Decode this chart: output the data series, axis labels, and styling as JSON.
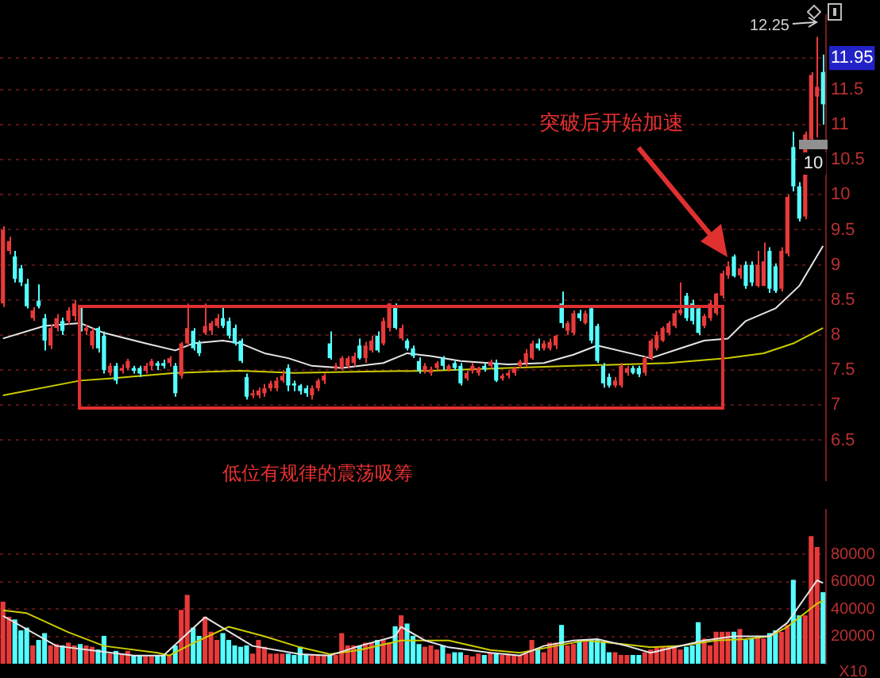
{
  "chart_data": [
    {
      "type": "candlestick",
      "tick_labels": "y",
      "grid": "y",
      "legend": false,
      "marker": "none",
      "line_style": "solid",
      "categories": [
        null,
        null,
        null,
        null,
        null,
        null,
        null,
        null,
        null,
        null,
        null,
        null,
        null,
        null,
        null,
        null,
        null,
        null,
        null,
        null,
        null,
        null,
        null,
        null,
        null,
        null,
        null,
        null,
        null,
        null,
        null,
        null,
        null,
        null,
        null,
        null,
        null,
        null,
        null,
        null,
        null,
        null,
        null,
        null,
        null,
        null,
        null,
        null,
        null,
        null,
        null,
        null,
        null,
        null,
        null,
        null,
        null,
        null,
        null,
        null,
        null,
        null,
        null,
        null,
        null,
        null,
        null,
        null,
        null,
        null,
        null,
        null,
        null,
        null,
        null,
        null,
        null,
        null,
        null,
        null,
        null,
        null,
        null,
        null,
        null,
        null,
        null,
        null,
        null,
        null,
        null,
        null,
        null,
        null,
        null,
        null,
        null,
        null,
        null,
        null,
        null,
        null,
        null,
        null,
        null,
        null,
        null,
        null,
        null,
        null,
        null,
        null,
        null,
        null,
        null,
        null,
        null,
        null,
        null,
        null,
        null,
        null,
        null,
        null,
        null,
        null,
        null,
        null,
        null,
        null,
        null,
        null,
        null,
        null,
        null,
        null,
        null,
        null,
        null
      ],
      "ohlc": [
        [
          8.45,
          9.55,
          8.4,
          9.5
        ],
        [
          9.2,
          9.4,
          9.15,
          9.34
        ],
        [
          9.12,
          9.2,
          8.75,
          8.8
        ],
        [
          8.95,
          9.0,
          8.7,
          8.75
        ],
        [
          8.73,
          8.8,
          8.38,
          8.41
        ],
        [
          8.24,
          8.4,
          8.2,
          8.35
        ],
        [
          8.49,
          8.72,
          8.38,
          8.41
        ],
        [
          8.24,
          8.3,
          7.78,
          7.92
        ],
        [
          7.85,
          8.15,
          7.8,
          8.1
        ],
        [
          8.1,
          8.3,
          8.05,
          8.24
        ],
        [
          8.2,
          8.25,
          8.0,
          8.06
        ],
        [
          8.2,
          8.4,
          8.15,
          8.35
        ],
        [
          8.27,
          8.5,
          8.2,
          8.45
        ],
        [
          8.35,
          8.4,
          8.05,
          8.1
        ],
        [
          8.06,
          8.15,
          8.0,
          8.1
        ],
        [
          7.85,
          8.1,
          7.8,
          8.06
        ],
        [
          8.1,
          8.12,
          7.75,
          7.81
        ],
        [
          7.99,
          8.05,
          7.45,
          7.5
        ],
        [
          7.46,
          7.6,
          7.42,
          7.56
        ],
        [
          7.56,
          7.6,
          7.3,
          7.35
        ],
        [
          7.49,
          7.58,
          7.45,
          7.53
        ],
        [
          7.53,
          7.66,
          7.5,
          7.63
        ],
        [
          7.53,
          7.56,
          7.45,
          7.49
        ],
        [
          7.53,
          7.56,
          7.4,
          7.45
        ],
        [
          7.49,
          7.6,
          7.45,
          7.56
        ],
        [
          7.56,
          7.66,
          7.5,
          7.63
        ],
        [
          7.6,
          7.63,
          7.5,
          7.56
        ],
        [
          7.6,
          7.65,
          7.52,
          7.56
        ],
        [
          7.6,
          7.7,
          7.55,
          7.67
        ],
        [
          7.56,
          7.6,
          7.12,
          7.17
        ],
        [
          7.42,
          7.9,
          7.38,
          7.88
        ],
        [
          7.88,
          8.45,
          7.85,
          8.1
        ],
        [
          8.06,
          8.1,
          7.78,
          7.81
        ],
        [
          7.88,
          7.92,
          7.7,
          7.74
        ],
        [
          8.03,
          8.45,
          8.0,
          8.13
        ],
        [
          8.06,
          8.2,
          8.0,
          8.17
        ],
        [
          8.13,
          8.3,
          8.1,
          8.24
        ],
        [
          8.24,
          8.4,
          8.1,
          8.13
        ],
        [
          8.2,
          8.25,
          7.95,
          7.99
        ],
        [
          8.1,
          8.15,
          7.85,
          7.88
        ],
        [
          7.92,
          7.95,
          7.6,
          7.63
        ],
        [
          7.4,
          7.45,
          7.08,
          7.12
        ],
        [
          7.14,
          7.22,
          7.1,
          7.17
        ],
        [
          7.14,
          7.25,
          7.1,
          7.21
        ],
        [
          7.17,
          7.3,
          7.12,
          7.24
        ],
        [
          7.24,
          7.35,
          7.2,
          7.31
        ],
        [
          7.24,
          7.4,
          7.2,
          7.35
        ],
        [
          7.35,
          7.5,
          7.32,
          7.42
        ],
        [
          7.53,
          7.58,
          7.2,
          7.28
        ],
        [
          7.31,
          7.35,
          7.2,
          7.28
        ],
        [
          7.28,
          7.3,
          7.15,
          7.2
        ],
        [
          7.24,
          7.28,
          7.12,
          7.17
        ],
        [
          7.14,
          7.28,
          7.08,
          7.24
        ],
        [
          7.24,
          7.38,
          7.2,
          7.35
        ],
        [
          7.35,
          7.45,
          7.3,
          7.42
        ],
        [
          7.88,
          8.05,
          7.65,
          7.67
        ],
        [
          7.53,
          7.6,
          7.5,
          7.56
        ],
        [
          7.53,
          7.7,
          7.5,
          7.67
        ],
        [
          7.56,
          7.7,
          7.52,
          7.67
        ],
        [
          7.6,
          7.75,
          7.55,
          7.7
        ],
        [
          7.85,
          7.95,
          7.65,
          7.67
        ],
        [
          7.67,
          7.9,
          7.6,
          7.85
        ],
        [
          7.78,
          7.99,
          7.75,
          7.92
        ],
        [
          7.99,
          8.05,
          7.75,
          7.78
        ],
        [
          7.88,
          8.25,
          7.85,
          8.2
        ],
        [
          8.1,
          8.45,
          8.05,
          8.45
        ],
        [
          8.41,
          8.45,
          8.08,
          8.1
        ],
        [
          7.95,
          8.15,
          7.92,
          8.1
        ],
        [
          7.92,
          7.95,
          7.78,
          7.81
        ],
        [
          7.81,
          7.85,
          7.67,
          7.7
        ],
        [
          7.63,
          7.68,
          7.45,
          7.49
        ],
        [
          7.49,
          7.6,
          7.45,
          7.56
        ],
        [
          7.46,
          7.55,
          7.42,
          7.51
        ],
        [
          7.53,
          7.63,
          7.5,
          7.6
        ],
        [
          7.67,
          7.7,
          7.5,
          7.56
        ],
        [
          7.51,
          7.58,
          7.48,
          7.56
        ],
        [
          7.6,
          7.63,
          7.5,
          7.53
        ],
        [
          7.56,
          7.6,
          7.28,
          7.31
        ],
        [
          7.38,
          7.5,
          7.35,
          7.46
        ],
        [
          7.49,
          7.6,
          7.45,
          7.56
        ],
        [
          7.46,
          7.55,
          7.42,
          7.53
        ],
        [
          7.56,
          7.6,
          7.48,
          7.51
        ],
        [
          7.56,
          7.65,
          7.52,
          7.62
        ],
        [
          7.6,
          7.65,
          7.33,
          7.35
        ],
        [
          7.38,
          7.45,
          7.35,
          7.42
        ],
        [
          7.42,
          7.5,
          7.38,
          7.46
        ],
        [
          7.46,
          7.55,
          7.42,
          7.53
        ],
        [
          7.56,
          7.65,
          7.52,
          7.62
        ],
        [
          7.6,
          7.8,
          7.55,
          7.74
        ],
        [
          7.67,
          7.92,
          7.65,
          7.88
        ],
        [
          7.88,
          7.95,
          7.78,
          7.81
        ],
        [
          7.81,
          7.92,
          7.78,
          7.88
        ],
        [
          7.81,
          7.95,
          7.78,
          7.9
        ],
        [
          7.85,
          8.0,
          7.8,
          7.99
        ],
        [
          8.45,
          8.62,
          8.1,
          8.17
        ],
        [
          8.06,
          8.2,
          8.0,
          8.17
        ],
        [
          8.03,
          8.35,
          8.0,
          8.31
        ],
        [
          8.31,
          8.36,
          8.2,
          8.24
        ],
        [
          8.17,
          8.35,
          8.15,
          8.31
        ],
        [
          8.38,
          8.42,
          7.88,
          7.92
        ],
        [
          8.13,
          8.16,
          7.6,
          7.63
        ],
        [
          7.56,
          7.6,
          7.25,
          7.31
        ],
        [
          7.4,
          7.45,
          7.25,
          7.28
        ],
        [
          7.28,
          7.4,
          7.25,
          7.35
        ],
        [
          7.28,
          7.6,
          7.25,
          7.56
        ],
        [
          7.46,
          7.56,
          7.42,
          7.53
        ],
        [
          7.53,
          7.56,
          7.44,
          7.46
        ],
        [
          7.53,
          7.56,
          7.4,
          7.44
        ],
        [
          7.46,
          7.7,
          7.42,
          7.67
        ],
        [
          7.67,
          7.95,
          7.64,
          7.92
        ],
        [
          7.81,
          8.05,
          7.78,
          8.0
        ],
        [
          7.92,
          8.12,
          7.9,
          8.1
        ],
        [
          8.03,
          8.2,
          8.0,
          8.17
        ],
        [
          8.13,
          8.35,
          8.1,
          8.31
        ],
        [
          8.31,
          8.75,
          8.28,
          8.36
        ],
        [
          8.56,
          8.6,
          8.2,
          8.24
        ],
        [
          8.45,
          8.5,
          8.15,
          8.2
        ],
        [
          8.38,
          8.42,
          8.0,
          8.03
        ],
        [
          8.13,
          8.3,
          8.1,
          8.27
        ],
        [
          8.24,
          8.5,
          8.2,
          8.45
        ],
        [
          8.31,
          8.6,
          8.28,
          8.59
        ],
        [
          8.56,
          8.92,
          8.52,
          8.88
        ],
        [
          8.85,
          9.05,
          8.8,
          8.98
        ],
        [
          9.12,
          9.15,
          8.82,
          8.84
        ],
        [
          8.85,
          9.0,
          8.8,
          8.95
        ],
        [
          9.0,
          9.05,
          8.66,
          8.7
        ],
        [
          9.0,
          9.05,
          8.7,
          8.75
        ],
        [
          8.7,
          9.2,
          8.68,
          9.0
        ],
        [
          8.7,
          9.32,
          8.7,
          9.05
        ],
        [
          9.2,
          9.25,
          8.6,
          8.66
        ],
        [
          8.98,
          9.02,
          8.6,
          8.63
        ],
        [
          8.66,
          9.25,
          8.62,
          9.2
        ],
        [
          9.16,
          10.0,
          9.12,
          9.97
        ],
        [
          10.68,
          10.9,
          10.05,
          10.12
        ],
        [
          10.12,
          10.18,
          9.62,
          9.66
        ],
        [
          9.69,
          10.9,
          9.65,
          10.86
        ],
        [
          10.79,
          11.75,
          10.75,
          11.71
        ],
        [
          11.4,
          12.25,
          10.82,
          11.54
        ],
        [
          11.75,
          12.0,
          11.0,
          11.29
        ]
      ],
      "colors": [
        "#e83a3a",
        "#e83a3a",
        "#54ffff",
        "#54ffff",
        "#54ffff",
        "#e83a3a",
        "#54ffff",
        "#54ffff",
        "#e83a3a",
        "#e83a3a",
        "#54ffff",
        "#e83a3a",
        "#e83a3a",
        "#54ffff",
        "#e83a3a",
        "#e83a3a",
        "#54ffff",
        "#54ffff",
        "#e83a3a",
        "#54ffff",
        "#e83a3a",
        "#e83a3a",
        "#54ffff",
        "#54ffff",
        "#e83a3a",
        "#e83a3a",
        "#54ffff",
        "#54ffff",
        "#e83a3a",
        "#54ffff",
        "#e83a3a",
        "#e83a3a",
        "#54ffff",
        "#54ffff",
        "#e83a3a",
        "#e83a3a",
        "#e83a3a",
        "#54ffff",
        "#54ffff",
        "#54ffff",
        "#54ffff",
        "#54ffff",
        "#e83a3a",
        "#e83a3a",
        "#e83a3a",
        "#e83a3a",
        "#e83a3a",
        "#e83a3a",
        "#54ffff",
        "#54ffff",
        "#54ffff",
        "#54ffff",
        "#e83a3a",
        "#e83a3a",
        "#e83a3a",
        "#54ffff",
        "#e83a3a",
        "#e83a3a",
        "#e83a3a",
        "#e83a3a",
        "#54ffff",
        "#e83a3a",
        "#e83a3a",
        "#54ffff",
        "#e83a3a",
        "#e83a3a",
        "#54ffff",
        "#e83a3a",
        "#54ffff",
        "#54ffff",
        "#54ffff",
        "#e83a3a",
        "#e83a3a",
        "#e83a3a",
        "#54ffff",
        "#e83a3a",
        "#54ffff",
        "#54ffff",
        "#e83a3a",
        "#e83a3a",
        "#e83a3a",
        "#54ffff",
        "#e83a3a",
        "#54ffff",
        "#e83a3a",
        "#e83a3a",
        "#e83a3a",
        "#e83a3a",
        "#e83a3a",
        "#e83a3a",
        "#54ffff",
        "#e83a3a",
        "#e83a3a",
        "#e83a3a",
        "#54ffff",
        "#e83a3a",
        "#e83a3a",
        "#54ffff",
        "#e83a3a",
        "#54ffff",
        "#54ffff",
        "#54ffff",
        "#54ffff",
        "#e83a3a",
        "#e83a3a",
        "#e83a3a",
        "#54ffff",
        "#54ffff",
        "#e83a3a",
        "#e83a3a",
        "#e83a3a",
        "#e83a3a",
        "#e83a3a",
        "#e83a3a",
        "#e83a3a",
        "#54ffff",
        "#54ffff",
        "#54ffff",
        "#e83a3a",
        "#e83a3a",
        "#e83a3a",
        "#e83a3a",
        "#e83a3a",
        "#54ffff",
        "#e83a3a",
        "#54ffff",
        "#54ffff",
        "#e83a3a",
        "#e83a3a",
        "#54ffff",
        "#54ffff",
        "#e83a3a",
        "#e83a3a",
        "#54ffff",
        "#54ffff",
        "#e83a3a",
        "#e83a3a",
        "#e83a3a",
        "#54ffff"
      ],
      "series": [
        {
          "type": "line",
          "color": "#e6e6e6",
          "values": [
            7.95,
            null,
            null,
            null,
            null,
            null,
            null,
            8.13,
            null,
            null,
            null,
            null,
            null,
            8.17,
            null,
            null,
            null,
            8.03,
            null,
            null,
            null,
            null,
            null,
            null,
            7.88,
            null,
            null,
            null,
            null,
            7.78,
            null,
            null,
            7.88,
            null,
            null,
            null,
            null,
            7.92,
            null,
            null,
            7.88,
            null,
            null,
            null,
            7.74,
            null,
            null,
            null,
            7.67,
            null,
            null,
            null,
            7.56,
            null,
            null,
            null,
            null,
            7.53,
            null,
            null,
            null,
            null,
            null,
            null,
            7.6,
            null,
            null,
            null,
            7.74,
            null,
            null,
            null,
            7.7,
            null,
            null,
            null,
            null,
            7.63,
            null,
            null,
            null,
            null,
            null,
            null,
            null,
            7.58,
            null,
            null,
            null,
            null,
            null,
            7.6,
            null,
            null,
            null,
            null,
            7.72,
            null,
            null,
            null,
            7.85,
            null,
            null,
            null,
            null,
            null,
            null,
            null,
            null,
            7.67,
            null,
            null,
            null,
            null,
            7.81,
            null,
            null,
            null,
            7.92,
            null,
            null,
            null,
            7.95,
            null,
            null,
            8.2,
            null,
            null,
            null,
            null,
            8.38,
            null,
            null,
            null,
            8.7,
            null,
            null,
            null,
            9.27
          ]
        },
        {
          "type": "line",
          "color": "#cccc00",
          "values": [
            7.14,
            null,
            null,
            null,
            null,
            null,
            null,
            null,
            null,
            null,
            null,
            null,
            null,
            7.35,
            null,
            null,
            null,
            null,
            7.38,
            null,
            null,
            null,
            null,
            null,
            null,
            null,
            null,
            null,
            null,
            7.46,
            null,
            null,
            null,
            null,
            null,
            null,
            null,
            null,
            null,
            null,
            7.49,
            null,
            null,
            null,
            null,
            null,
            null,
            null,
            null,
            7.46,
            null,
            null,
            null,
            null,
            null,
            null,
            null,
            null,
            null,
            null,
            null,
            7.48,
            null,
            null,
            null,
            null,
            null,
            null,
            null,
            null,
            null,
            null,
            7.49,
            null,
            null,
            null,
            null,
            null,
            null,
            null,
            null,
            null,
            null,
            null,
            null,
            7.53,
            null,
            null,
            null,
            null,
            null,
            null,
            null,
            null,
            null,
            null,
            7.56,
            null,
            null,
            null,
            null,
            null,
            null,
            null,
            null,
            null,
            null,
            null,
            null,
            null,
            null,
            null,
            7.6,
            null,
            null,
            null,
            null,
            null,
            null,
            null,
            null,
            null,
            7.67,
            null,
            null,
            null,
            null,
            null,
            7.74,
            null,
            null,
            null,
            null,
            7.88,
            null,
            null,
            null,
            null,
            8.1
          ]
        }
      ],
      "ylim": [
        5.93,
        12.56
      ],
      "yticks": [
        6.5,
        7,
        7.5,
        8,
        8.5,
        9,
        9.5,
        10,
        10.5,
        11,
        11.5,
        {
          "value": 11.95,
          "label": "11.95"
        }
      ],
      "annotations": [
        "突破后开始加速",
        "低位有规律的震荡吸筹",
        "12.25",
        "10"
      ]
    },
    {
      "type": "bar",
      "tick_labels": "y",
      "grid": "y",
      "legend": false,
      "marker": "none",
      "line_style": "solid",
      "categories": [
        null,
        null,
        null,
        null,
        null,
        null,
        null,
        null,
        null,
        null,
        null,
        null,
        null,
        null,
        null,
        null,
        null,
        null,
        null,
        null,
        null,
        null,
        null,
        null,
        null,
        null,
        null,
        null,
        null,
        null,
        null,
        null,
        null,
        null,
        null,
        null,
        null,
        null,
        null,
        null,
        null,
        null,
        null,
        null,
        null,
        null,
        null,
        null,
        null,
        null,
        null,
        null,
        null,
        null,
        null,
        null,
        null,
        null,
        null,
        null,
        null,
        null,
        null,
        null,
        null,
        null,
        null,
        null,
        null,
        null,
        null,
        null,
        null,
        null,
        null,
        null,
        null,
        null,
        null,
        null,
        null,
        null,
        null,
        null,
        null,
        null,
        null,
        null,
        null,
        null,
        null,
        null,
        null,
        null,
        null,
        null,
        null,
        null,
        null,
        null,
        null,
        null,
        null,
        null,
        null,
        null,
        null,
        null,
        null,
        null,
        null,
        null,
        null,
        null,
        null,
        null,
        null,
        null,
        null,
        null,
        null,
        null,
        null,
        null,
        null,
        null,
        null,
        null,
        null,
        null,
        null,
        null,
        null,
        null,
        null,
        null,
        null,
        null,
        null
      ],
      "series": [
        {
          "type": "bar",
          "values": [
            45000,
            34000,
            32000,
            24000,
            26000,
            13000,
            17000,
            22000,
            13000,
            14000,
            13000,
            15000,
            13000,
            14000,
            13000,
            12000,
            10000,
            20000,
            7000,
            9000,
            7000,
            9000,
            6000,
            6000,
            5000,
            5000,
            6000,
            6000,
            6000,
            13000,
            39000,
            50000,
            26000,
            20000,
            34000,
            23000,
            17000,
            22000,
            17000,
            13000,
            12000,
            13000,
            7000,
            17000,
            12000,
            7000,
            7000,
            7000,
            7000,
            6000,
            12000,
            6000,
            6000,
            6000,
            6000,
            6000,
            6000,
            22000,
            13000,
            13000,
            13000,
            15000,
            15000,
            17000,
            17000,
            15000,
            27000,
            35000,
            29000,
            20000,
            14000,
            12000,
            13000,
            10000,
            13000,
            7000,
            8000,
            8000,
            6000,
            5000,
            7000,
            6000,
            8000,
            7000,
            6000,
            7000,
            6000,
            6000,
            7000,
            17000,
            11000,
            8000,
            15000,
            15000,
            28000,
            13000,
            14000,
            17000,
            17000,
            17000,
            17000,
            16000,
            8000,
            8000,
            6000,
            6000,
            6000,
            6000,
            8000,
            10000,
            12000,
            12000,
            12000,
            12000,
            10000,
            12000,
            13000,
            30000,
            18000,
            13000,
            23000,
            23000,
            23000,
            23000,
            25000,
            17000,
            18000,
            20000,
            18000,
            22000,
            24000,
            23000,
            28000,
            61000,
            35000,
            35000,
            93000,
            85000,
            52000
          ],
          "colors": [
            "#e83a3a",
            "#e83a3a",
            "#54ffff",
            "#54ffff",
            "#54ffff",
            "#e83a3a",
            "#54ffff",
            "#54ffff",
            "#e83a3a",
            "#e83a3a",
            "#54ffff",
            "#e83a3a",
            "#e83a3a",
            "#54ffff",
            "#e83a3a",
            "#e83a3a",
            "#54ffff",
            "#54ffff",
            "#e83a3a",
            "#54ffff",
            "#e83a3a",
            "#e83a3a",
            "#54ffff",
            "#54ffff",
            "#e83a3a",
            "#e83a3a",
            "#54ffff",
            "#54ffff",
            "#e83a3a",
            "#54ffff",
            "#e83a3a",
            "#e83a3a",
            "#54ffff",
            "#54ffff",
            "#e83a3a",
            "#e83a3a",
            "#e83a3a",
            "#54ffff",
            "#54ffff",
            "#54ffff",
            "#54ffff",
            "#54ffff",
            "#e83a3a",
            "#e83a3a",
            "#e83a3a",
            "#e83a3a",
            "#e83a3a",
            "#e83a3a",
            "#54ffff",
            "#54ffff",
            "#54ffff",
            "#54ffff",
            "#e83a3a",
            "#e83a3a",
            "#e83a3a",
            "#54ffff",
            "#e83a3a",
            "#e83a3a",
            "#e83a3a",
            "#e83a3a",
            "#54ffff",
            "#e83a3a",
            "#e83a3a",
            "#54ffff",
            "#e83a3a",
            "#e83a3a",
            "#54ffff",
            "#e83a3a",
            "#54ffff",
            "#54ffff",
            "#54ffff",
            "#e83a3a",
            "#e83a3a",
            "#e83a3a",
            "#54ffff",
            "#e83a3a",
            "#54ffff",
            "#54ffff",
            "#e83a3a",
            "#e83a3a",
            "#e83a3a",
            "#54ffff",
            "#e83a3a",
            "#54ffff",
            "#e83a3a",
            "#e83a3a",
            "#e83a3a",
            "#e83a3a",
            "#e83a3a",
            "#e83a3a",
            "#54ffff",
            "#e83a3a",
            "#e83a3a",
            "#e83a3a",
            "#54ffff",
            "#e83a3a",
            "#e83a3a",
            "#54ffff",
            "#e83a3a",
            "#54ffff",
            "#54ffff",
            "#54ffff",
            "#54ffff",
            "#e83a3a",
            "#e83a3a",
            "#e83a3a",
            "#54ffff",
            "#54ffff",
            "#e83a3a",
            "#e83a3a",
            "#e83a3a",
            "#e83a3a",
            "#e83a3a",
            "#e83a3a",
            "#e83a3a",
            "#54ffff",
            "#54ffff",
            "#54ffff",
            "#e83a3a",
            "#e83a3a",
            "#e83a3a",
            "#e83a3a",
            "#e83a3a",
            "#54ffff",
            "#e83a3a",
            "#54ffff",
            "#54ffff",
            "#e83a3a",
            "#e83a3a",
            "#54ffff",
            "#54ffff",
            "#e83a3a",
            "#e83a3a",
            "#54ffff",
            "#54ffff",
            "#e83a3a",
            "#e83a3a",
            "#e83a3a",
            "#54ffff"
          ]
        },
        {
          "type": "line",
          "color": "#e6e6e6",
          "values": [
            35000,
            null,
            null,
            null,
            null,
            null,
            null,
            null,
            null,
            13000,
            null,
            null,
            null,
            null,
            null,
            null,
            null,
            null,
            null,
            null,
            null,
            null,
            6000,
            null,
            null,
            null,
            null,
            6000,
            null,
            null,
            null,
            null,
            null,
            null,
            34000,
            null,
            null,
            null,
            null,
            null,
            null,
            null,
            13000,
            null,
            null,
            null,
            null,
            null,
            null,
            null,
            7000,
            null,
            null,
            null,
            null,
            6000,
            null,
            null,
            null,
            null,
            13000,
            null,
            null,
            null,
            null,
            null,
            20000,
            27000,
            null,
            null,
            null,
            17000,
            null,
            null,
            null,
            12000,
            null,
            null,
            null,
            null,
            null,
            null,
            8000,
            null,
            null,
            null,
            null,
            6000,
            null,
            null,
            null,
            13000,
            null,
            null,
            null,
            null,
            17000,
            null,
            null,
            null,
            18000,
            null,
            null,
            null,
            null,
            13000,
            null,
            null,
            null,
            8000,
            null,
            null,
            null,
            12000,
            null,
            null,
            null,
            null,
            17000,
            null,
            null,
            null,
            null,
            20000,
            null,
            null,
            null,
            null,
            null,
            20000,
            null,
            null,
            30000,
            null,
            null,
            null,
            null,
            61000,
            59000
          ]
        },
        {
          "type": "line",
          "color": "#cccc00",
          "values": [
            39000,
            null,
            null,
            null,
            37000,
            null,
            null,
            null,
            null,
            null,
            null,
            23000,
            null,
            null,
            null,
            null,
            null,
            13000,
            null,
            null,
            null,
            null,
            null,
            null,
            null,
            null,
            8000,
            null,
            6000,
            null,
            null,
            null,
            15000,
            null,
            null,
            null,
            null,
            null,
            27000,
            null,
            null,
            null,
            null,
            null,
            20000,
            null,
            null,
            null,
            null,
            null,
            12000,
            null,
            null,
            null,
            null,
            7000,
            null,
            null,
            null,
            null,
            10000,
            null,
            null,
            null,
            null,
            null,
            null,
            17000,
            null,
            null,
            null,
            null,
            null,
            null,
            null,
            17000,
            null,
            null,
            null,
            null,
            null,
            null,
            10000,
            null,
            null,
            null,
            null,
            8000,
            null,
            null,
            null,
            null,
            null,
            13000,
            null,
            null,
            null,
            null,
            17000,
            null,
            null,
            null,
            null,
            15000,
            null,
            null,
            null,
            null,
            null,
            12000,
            null,
            null,
            null,
            null,
            13000,
            null,
            null,
            null,
            null,
            null,
            17000,
            null,
            null,
            null,
            null,
            18000,
            null,
            null,
            null,
            20000,
            null,
            null,
            27000,
            null,
            null,
            null,
            null,
            44000,
            46000
          ]
        }
      ],
      "ylim": [
        0,
        112700
      ],
      "yticks": [
        20000,
        40000,
        60000,
        80000
      ],
      "annotations": [
        "X10"
      ]
    }
  ]
}
